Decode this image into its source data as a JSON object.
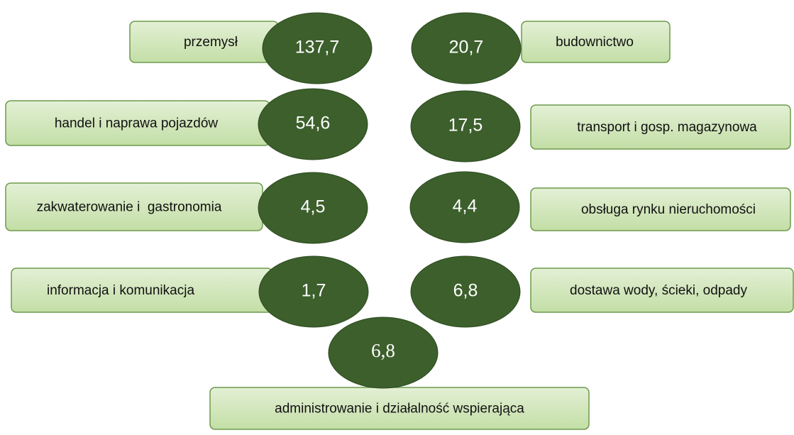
{
  "items": [
    {
      "label": "przemysł",
      "value": "137,7"
    },
    {
      "label": "budownictwo",
      "value": "20,7"
    },
    {
      "label": "handel i naprawa pojazdów",
      "value": "54,6"
    },
    {
      "label": "transport i gosp. magazynowa",
      "value": "17,5"
    },
    {
      "label": "zakwaterowanie i  gastronomia",
      "value": "4,5"
    },
    {
      "label": "obsługa rynku nieruchomości",
      "value": "4,4"
    },
    {
      "label": "informacja i komunikacja",
      "value": "1,7"
    },
    {
      "label": "dostawa wody, ścieki, odpady",
      "value": "6,8"
    },
    {
      "label": "administrowanie i działalność wspierająca",
      "value": "6,8"
    }
  ]
}
